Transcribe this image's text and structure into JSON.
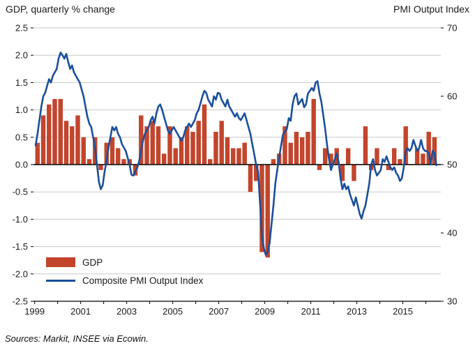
{
  "header": {
    "left_title": "GDP, quarterly % change",
    "right_title": "PMI Output Index"
  },
  "legend": {
    "gdp": "GDP",
    "pmi": "Composite PMI Output Index"
  },
  "footer": {
    "sources": "Sources: Markit, INSEE via Ecowin."
  },
  "colors": {
    "bar": "#c2452c",
    "line": "#1b4f9c",
    "grid": "#c9c9c9",
    "axis": "#000000"
  },
  "chart_data": {
    "type": "bar",
    "subtype": "combo-bar-line-dual-axis",
    "title": "",
    "left_axis": {
      "label": "GDP, quarterly % change",
      "min": -2.5,
      "max": 2.5,
      "step": 0.5
    },
    "right_axis": {
      "label": "PMI Output Index",
      "min": 30,
      "max": 70,
      "step": 10
    },
    "x_axis": {
      "min": 1998.95,
      "max": 2016.65,
      "tick_years": [
        1999,
        2001,
        2003,
        2005,
        2007,
        2009,
        2011,
        2013,
        2015
      ],
      "minor_tick_years_start": 1999,
      "minor_tick_years_end": 2016
    },
    "series": [
      {
        "name": "GDP",
        "type": "bar",
        "axis": "left",
        "freq": "quarterly",
        "start_year": 1999,
        "values": [
          0.4,
          0.9,
          1.1,
          1.2,
          1.2,
          0.8,
          0.7,
          0.9,
          0.5,
          0.1,
          0.5,
          -0.1,
          0.4,
          0.5,
          0.3,
          0.1,
          0.1,
          -0.2,
          0.9,
          0.7,
          0.8,
          0.7,
          0.2,
          0.7,
          0.3,
          0.5,
          0.7,
          0.6,
          0.8,
          1.1,
          0.1,
          0.6,
          0.8,
          0.5,
          0.3,
          0.3,
          0.4,
          -0.5,
          -0.3,
          -1.6,
          -1.7,
          0.1,
          0.2,
          0.7,
          0.4,
          0.6,
          0.5,
          0.6,
          1.2,
          -0.1,
          0.3,
          0.2,
          0.3,
          -0.3,
          0.3,
          -0.3,
          0.0,
          0.7,
          -0.1,
          0.3,
          0.0,
          -0.1,
          0.3,
          0.1,
          0.7,
          0.0,
          0.3,
          0.2,
          0.6,
          0.5
        ]
      },
      {
        "name": "Composite PMI Output Index",
        "type": "line",
        "axis": "right",
        "freq": "monthly",
        "start_year": 1999,
        "values": [
          52.8,
          54.5,
          56.5,
          58.5,
          60.0,
          60.5,
          61.5,
          62.5,
          62.0,
          63.0,
          63.5,
          64.0,
          65.5,
          66.4,
          66.0,
          65.5,
          66.2,
          65.0,
          64.0,
          64.5,
          63.5,
          63.0,
          62.5,
          62.0,
          61.0,
          60.0,
          58.5,
          57.0,
          56.0,
          55.5,
          54.0,
          52.5,
          50.0,
          47.5,
          46.4,
          47.0,
          49.0,
          50.5,
          52.5,
          54.0,
          55.5,
          55.0,
          55.5,
          54.5,
          54.0,
          53.0,
          52.5,
          52.0,
          51.0,
          50.0,
          48.5,
          48.4,
          49.0,
          49.5,
          50.5,
          52.0,
          53.5,
          54.5,
          55.0,
          55.5,
          56.5,
          57.0,
          56.0,
          57.5,
          58.5,
          58.8,
          58.0,
          57.0,
          56.0,
          55.0,
          54.5,
          55.0,
          55.5,
          55.0,
          54.5,
          54.0,
          53.5,
          54.0,
          55.0,
          55.5,
          56.0,
          55.5,
          56.0,
          56.5,
          57.5,
          58.0,
          59.0,
          60.0,
          60.8,
          60.5,
          59.5,
          59.0,
          58.5,
          60.0,
          59.5,
          60.5,
          60.4,
          59.5,
          59.0,
          58.5,
          59.5,
          58.5,
          58.0,
          57.5,
          57.0,
          57.5,
          56.8,
          56.5,
          57.0,
          57.5,
          56.5,
          55.5,
          54.5,
          53.0,
          51.5,
          50.0,
          49.0,
          44.5,
          39.6,
          37.8,
          36.8,
          37.2,
          38.5,
          41.2,
          44.0,
          47.2,
          49.2,
          51.0,
          52.8,
          54.4,
          54.8,
          55.2,
          56.8,
          56.4,
          58.8,
          60.0,
          60.4,
          58.8,
          59.2,
          59.6,
          58.4,
          58.8,
          60.4,
          60.8,
          61.2,
          60.8,
          62.0,
          62.2,
          60.4,
          59.2,
          57.2,
          55.2,
          52.8,
          50.8,
          49.2,
          50.0,
          50.8,
          51.6,
          50.4,
          48.0,
          46.4,
          47.2,
          46.4,
          46.8,
          45.6,
          44.8,
          44.0,
          45.2,
          44.0,
          42.8,
          42.1,
          43.2,
          44.0,
          45.6,
          47.2,
          50.0,
          50.8,
          49.2,
          48.4,
          48.8,
          49.2,
          50.8,
          50.4,
          51.2,
          50.4,
          49.6,
          49.2,
          49.6,
          48.8,
          48.4,
          47.6,
          48.0,
          49.6,
          52.0,
          52.4,
          52.0,
          52.4,
          53.6,
          52.8,
          52.0,
          52.4,
          53.6,
          52.4,
          52.0,
          52.0,
          51.6,
          50.0,
          52.0,
          51.6,
          49.9
        ]
      }
    ]
  }
}
